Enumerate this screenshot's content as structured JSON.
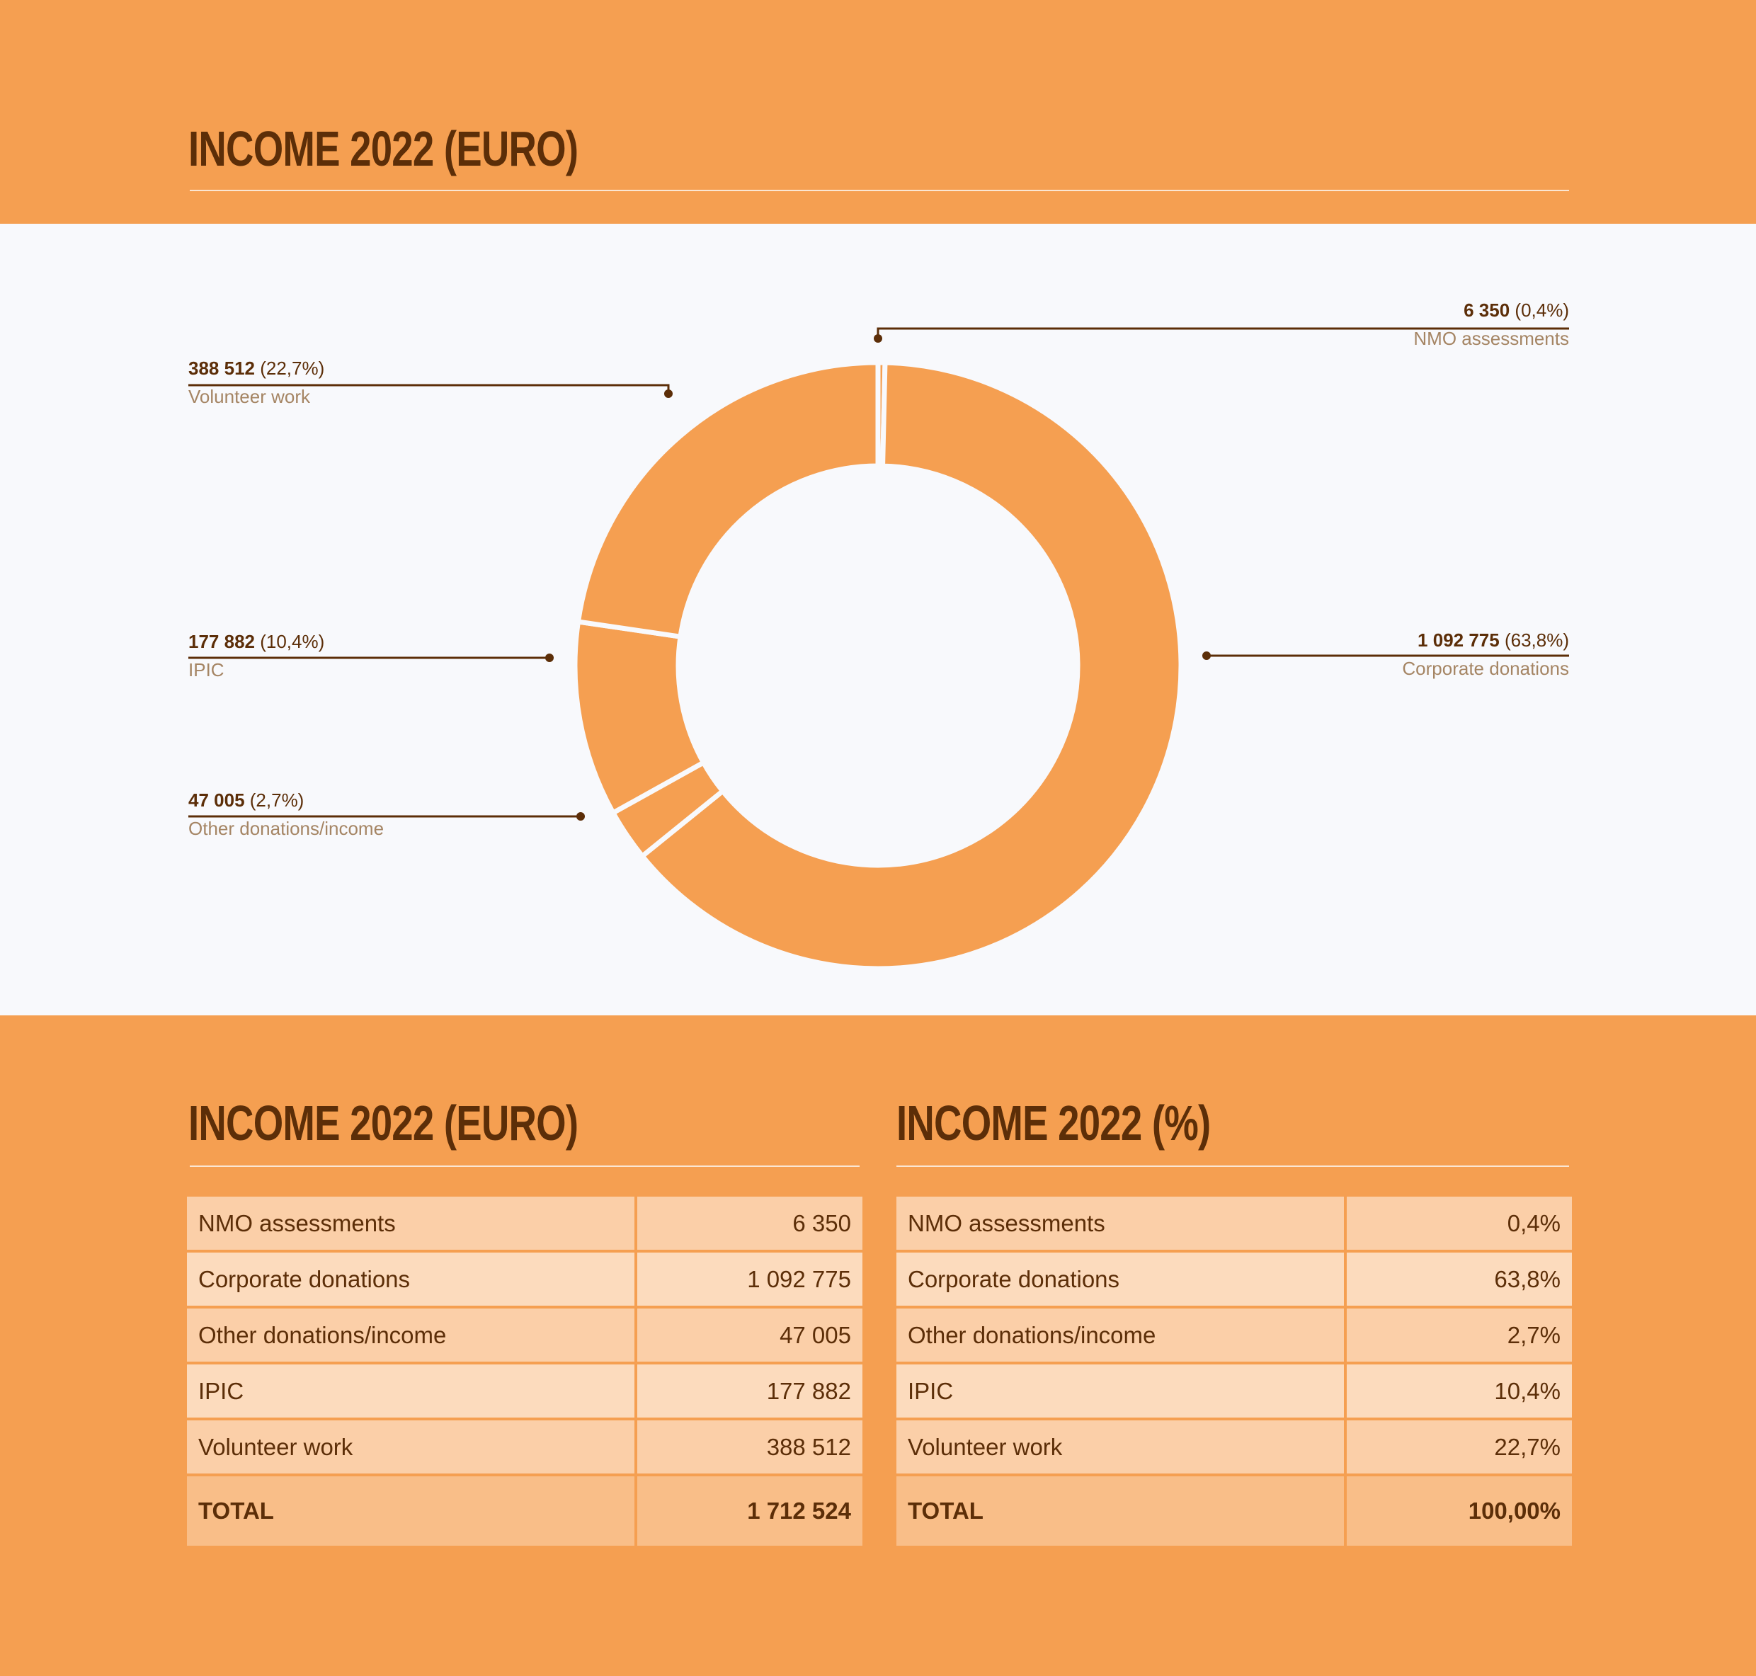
{
  "header": {
    "title": "INCOME 2022 (EURO)"
  },
  "chart_data": {
    "type": "pie",
    "title": "INCOME 2022 (EURO)",
    "slices": [
      {
        "label": "NMO assessments",
        "value": 6350,
        "value_text": "6 350",
        "pct_text": "(0,4%)",
        "percent": 0.4
      },
      {
        "label": "Corporate donations",
        "value": 1092775,
        "value_text": "1 092 775",
        "pct_text": "(63,8%)",
        "percent": 63.8
      },
      {
        "label": "Other donations/income",
        "value": 47005,
        "value_text": "47 005",
        "pct_text": "(2,7%)",
        "percent": 2.7
      },
      {
        "label": "IPIC",
        "value": 177882,
        "value_text": "177 882",
        "pct_text": "(10,4%)",
        "percent": 10.4
      },
      {
        "label": "Volunteer work",
        "value": 388512,
        "value_text": "388 512",
        "pct_text": "(22,7%)",
        "percent": 22.7
      }
    ],
    "colors": {
      "slice": "#F59F51",
      "separator": "#F8F9FC",
      "leader": "#5C2E08"
    }
  },
  "tables": {
    "euro": {
      "title": "INCOME 2022 (EURO)",
      "rows": [
        {
          "label": "NMO assessments",
          "value": "6 350"
        },
        {
          "label": "Corporate donations",
          "value": "1 092 775"
        },
        {
          "label": "Other donations/income",
          "value": "47 005"
        },
        {
          "label": "IPIC",
          "value": "177 882"
        },
        {
          "label": "Volunteer work",
          "value": "388 512"
        }
      ],
      "total": {
        "label": "TOTAL",
        "value": "1 712 524"
      }
    },
    "percent": {
      "title": "INCOME 2022 (%)",
      "rows": [
        {
          "label": "NMO assessments",
          "value": "0,4%"
        },
        {
          "label": "Corporate donations",
          "value": "63,8%"
        },
        {
          "label": "Other donations/income",
          "value": "2,7%"
        },
        {
          "label": "IPIC",
          "value": "10,4%"
        },
        {
          "label": "Volunteer work",
          "value": "22,7%"
        }
      ],
      "total": {
        "label": "TOTAL",
        "value": "100,00%"
      }
    }
  },
  "colors": {
    "brand": "#F59F51",
    "text": "#5C2E08",
    "muted": "#A58564",
    "band": "#F8F9FC"
  }
}
